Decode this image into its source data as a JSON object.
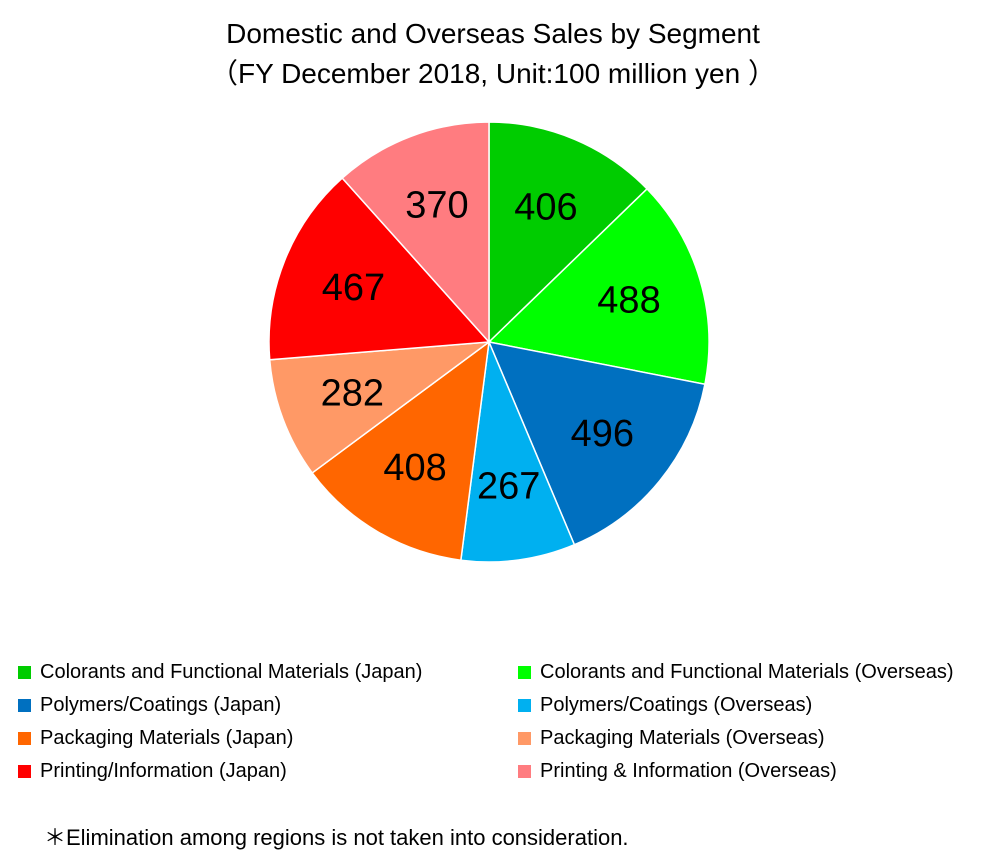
{
  "chart_data": {
    "type": "pie",
    "title": "Domestic and Overseas Sales by Segment",
    "subtitle": "（FY December 2018, Unit:100 million yen ）",
    "start_angle": "12 o'clock, clockwise",
    "legend_position": "bottom",
    "slices": [
      {
        "label": "Colorants and Functional Materials (Japan)",
        "value": 406,
        "display": "406",
        "color": "#00CC00"
      },
      {
        "label": "Colorants and Functional Materials (Overseas)",
        "value": 488,
        "display": "488",
        "color": "#00FF00"
      },
      {
        "label": "Polymers/Coatings (Japan)",
        "value": 496,
        "display": "496",
        "color": "#0070C0"
      },
      {
        "label": "Polymers/Coatings (Overseas)",
        "value": 267,
        "display": "267",
        "color": "#00B0F0"
      },
      {
        "label": "Packaging Materials (Japan)",
        "value": 408,
        "display": "408",
        "color": "#FF6600"
      },
      {
        "label": "Packaging Materials (Overseas)",
        "value": 282,
        "display": "282",
        "color": "#FF9966"
      },
      {
        "label": "Printing/Information (Japan)",
        "value": 467,
        "display": "467",
        "color": "#FF0000"
      },
      {
        "label": "Printing & Information (Overseas)",
        "value": 370,
        "display": "370",
        "color": "#FF7C80"
      }
    ],
    "legend_order": [
      0,
      1,
      2,
      3,
      4,
      5,
      6,
      7
    ]
  },
  "footnote": "＊Elimination among regions is not taken into consideration."
}
